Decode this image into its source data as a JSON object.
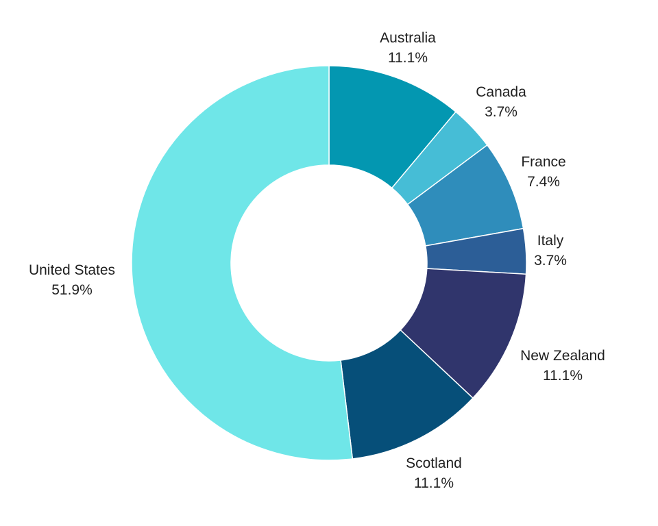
{
  "chart_data": {
    "type": "pie",
    "variant": "donut",
    "title": "",
    "start": "top, clockwise",
    "legend": "none (labels outside slices)",
    "slices": [
      {
        "label": "Australia",
        "value": 11.1,
        "value_label": "11.1%",
        "color": "#0397b1"
      },
      {
        "label": "Canada",
        "value": 3.7,
        "value_label": "3.7%",
        "color": "#46bdd6"
      },
      {
        "label": "France",
        "value": 7.4,
        "value_label": "7.4%",
        "color": "#2f8dbb"
      },
      {
        "label": "Italy",
        "value": 3.7,
        "value_label": "3.7%",
        "color": "#2c5e97"
      },
      {
        "label": "New Zealand",
        "value": 11.1,
        "value_label": "11.1%",
        "color": "#30356c"
      },
      {
        "label": "Scotland",
        "value": 11.1,
        "value_label": "11.1%",
        "color": "#064f79"
      },
      {
        "label": "United States",
        "value": 51.9,
        "value_label": "51.9%",
        "color": "#6fe6e8"
      }
    ]
  }
}
